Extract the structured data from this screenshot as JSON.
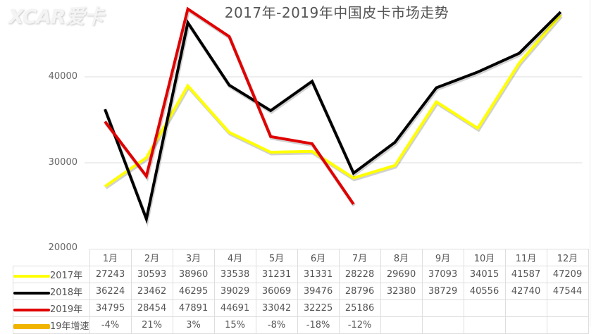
{
  "watermark": "XCAR爱卡",
  "chart_data": {
    "type": "line",
    "title": "2017年-2019年中国皮卡市场走势",
    "xlabel": "",
    "ylabel": "",
    "ylim": [
      20000,
      50000
    ],
    "yticks": [
      20000,
      30000,
      40000
    ],
    "grid": true,
    "legend_position": "table-left",
    "categories": [
      "1月",
      "2月",
      "3月",
      "4月",
      "5月",
      "6月",
      "7月",
      "8月",
      "9月",
      "10月",
      "11月",
      "12月"
    ],
    "series": [
      {
        "name": "2017年",
        "color": "#ffff00",
        "values": [
          27243,
          30593,
          38960,
          33538,
          31231,
          31331,
          28228,
          29690,
          37093,
          34015,
          41587,
          47209
        ]
      },
      {
        "name": "2018年",
        "color": "#000000",
        "values": [
          36224,
          23462,
          46295,
          39029,
          36069,
          39476,
          28796,
          32380,
          38729,
          40556,
          42740,
          47544
        ]
      },
      {
        "name": "2019年",
        "color": "#e00000",
        "values": [
          34795,
          28454,
          47891,
          44691,
          33042,
          32225,
          25186,
          null,
          null,
          null,
          null,
          null
        ]
      }
    ],
    "growth_row": {
      "name": "19年增速",
      "color": "#f0b400",
      "values": [
        "-4%",
        "21%",
        "3%",
        "15%",
        "-8%",
        "-18%",
        "-12%",
        "",
        "",
        "",
        "",
        ""
      ]
    }
  },
  "axis": {
    "y_labels": [
      "40000",
      "30000",
      "20000"
    ]
  }
}
